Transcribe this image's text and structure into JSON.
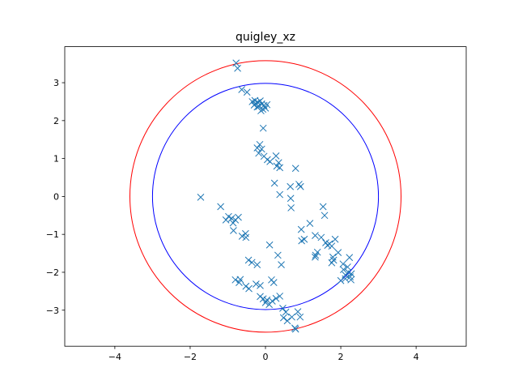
{
  "chart_data": {
    "type": "scatter",
    "title": "quigley_xz",
    "xlabel": "",
    "ylabel": "",
    "xlim": [
      -5.33,
      5.33
    ],
    "ylim": [
      -3.95,
      3.95
    ],
    "xticks": [
      -4,
      -2,
      0,
      2,
      4
    ],
    "yticks": [
      -3,
      -2,
      -1,
      0,
      1,
      2,
      3
    ],
    "grid": false,
    "aspect": "equal",
    "marker": "x",
    "colors": {
      "points": "#1f77b4",
      "outer_circle": "#ff0000",
      "inner_circle": "#0000ff",
      "axes": "#000000"
    },
    "circles": [
      {
        "name": "outer",
        "cx": 0,
        "cy": 0,
        "r": 3.6,
        "color": "#ff0000"
      },
      {
        "name": "inner",
        "cx": 0,
        "cy": 0,
        "r": 3.0,
        "color": "#0000ff"
      }
    ],
    "points": [
      [
        -0.78,
        3.52
      ],
      [
        -0.74,
        3.38
      ],
      [
        -0.63,
        2.82
      ],
      [
        -0.49,
        2.75
      ],
      [
        -0.35,
        2.5
      ],
      [
        -0.28,
        2.53
      ],
      [
        -0.2,
        2.48
      ],
      [
        -0.14,
        2.52
      ],
      [
        -0.1,
        2.44
      ],
      [
        -0.04,
        2.4
      ],
      [
        0.0,
        2.33
      ],
      [
        -0.18,
        2.37
      ],
      [
        -0.3,
        2.41
      ],
      [
        -0.07,
        2.3
      ],
      [
        0.04,
        2.42
      ],
      [
        -0.12,
        2.26
      ],
      [
        -0.22,
        2.36
      ],
      [
        -0.26,
        2.45
      ],
      [
        -0.06,
        1.8
      ],
      [
        -0.15,
        1.37
      ],
      [
        -0.22,
        1.28
      ],
      [
        -0.18,
        1.14
      ],
      [
        -0.1,
        1.25
      ],
      [
        -0.04,
        1.06
      ],
      [
        0.05,
        0.97
      ],
      [
        0.12,
        0.92
      ],
      [
        0.28,
        1.07
      ],
      [
        0.35,
        0.89
      ],
      [
        0.38,
        0.76
      ],
      [
        0.3,
        0.8
      ],
      [
        0.8,
        0.74
      ],
      [
        0.89,
        0.32
      ],
      [
        0.93,
        0.26
      ],
      [
        0.24,
        0.35
      ],
      [
        0.38,
        0.05
      ],
      [
        0.66,
        0.26
      ],
      [
        0.67,
        -0.05
      ],
      [
        0.68,
        -0.3
      ],
      [
        -1.72,
        -0.02
      ],
      [
        -1.19,
        -0.27
      ],
      [
        -1.05,
        -0.62
      ],
      [
        -0.98,
        -0.53
      ],
      [
        -0.9,
        -0.58
      ],
      [
        -0.86,
        -0.7
      ],
      [
        -0.8,
        -0.62
      ],
      [
        -0.72,
        -0.55
      ],
      [
        -0.85,
        -0.9
      ],
      [
        -0.62,
        -1.05
      ],
      [
        -0.52,
        -1.08
      ],
      [
        -0.53,
        -0.98
      ],
      [
        0.11,
        -1.28
      ],
      [
        -0.45,
        -1.68
      ],
      [
        -0.36,
        -1.74
      ],
      [
        -0.22,
        -1.8
      ],
      [
        0.33,
        -1.55
      ],
      [
        0.42,
        -1.8
      ],
      [
        -0.8,
        -2.2
      ],
      [
        -0.7,
        -2.27
      ],
      [
        -0.67,
        -2.19
      ],
      [
        -0.52,
        -2.37
      ],
      [
        -0.44,
        -2.43
      ],
      [
        -0.25,
        -2.31
      ],
      [
        -0.14,
        -2.35
      ],
      [
        0.16,
        -2.2
      ],
      [
        0.22,
        -2.27
      ],
      [
        -0.14,
        -2.64
      ],
      [
        -0.06,
        -2.7
      ],
      [
        0.0,
        -2.8
      ],
      [
        0.04,
        -2.73
      ],
      [
        0.1,
        -2.85
      ],
      [
        0.18,
        -2.76
      ],
      [
        0.28,
        -2.69
      ],
      [
        0.38,
        -2.63
      ],
      [
        0.46,
        -2.95
      ],
      [
        0.54,
        -3.05
      ],
      [
        0.48,
        -3.2
      ],
      [
        0.58,
        -3.28
      ],
      [
        0.7,
        -3.18
      ],
      [
        0.78,
        -3.47
      ],
      [
        0.8,
        -3.5
      ],
      [
        0.86,
        -3.04
      ],
      [
        0.92,
        -3.18
      ],
      [
        0.96,
        -1.17
      ],
      [
        0.95,
        -0.87
      ],
      [
        1.03,
        -1.13
      ],
      [
        1.18,
        -0.71
      ],
      [
        1.32,
        -1.03
      ],
      [
        1.33,
        -1.55
      ],
      [
        1.38,
        -1.47
      ],
      [
        1.32,
        -1.6
      ],
      [
        1.53,
        -0.27
      ],
      [
        1.57,
        -0.5
      ],
      [
        1.48,
        -1.08
      ],
      [
        1.6,
        -1.22
      ],
      [
        1.65,
        -1.29
      ],
      [
        1.7,
        -1.25
      ],
      [
        1.76,
        -1.31
      ],
      [
        1.79,
        -1.6
      ],
      [
        1.76,
        -1.75
      ],
      [
        1.81,
        -1.68
      ],
      [
        1.85,
        -1.13
      ],
      [
        1.93,
        -1.48
      ],
      [
        2.06,
        -1.78
      ],
      [
        2.07,
        -1.93
      ],
      [
        2.12,
        -2.07
      ],
      [
        2.18,
        -1.86
      ],
      [
        2.2,
        -2.0
      ],
      [
        2.12,
        -2.17
      ],
      [
        2.23,
        -1.61
      ],
      [
        2.25,
        -2.12
      ],
      [
        2.28,
        -2.04
      ],
      [
        2.0,
        -2.22
      ],
      [
        2.27,
        -2.2
      ]
    ]
  }
}
